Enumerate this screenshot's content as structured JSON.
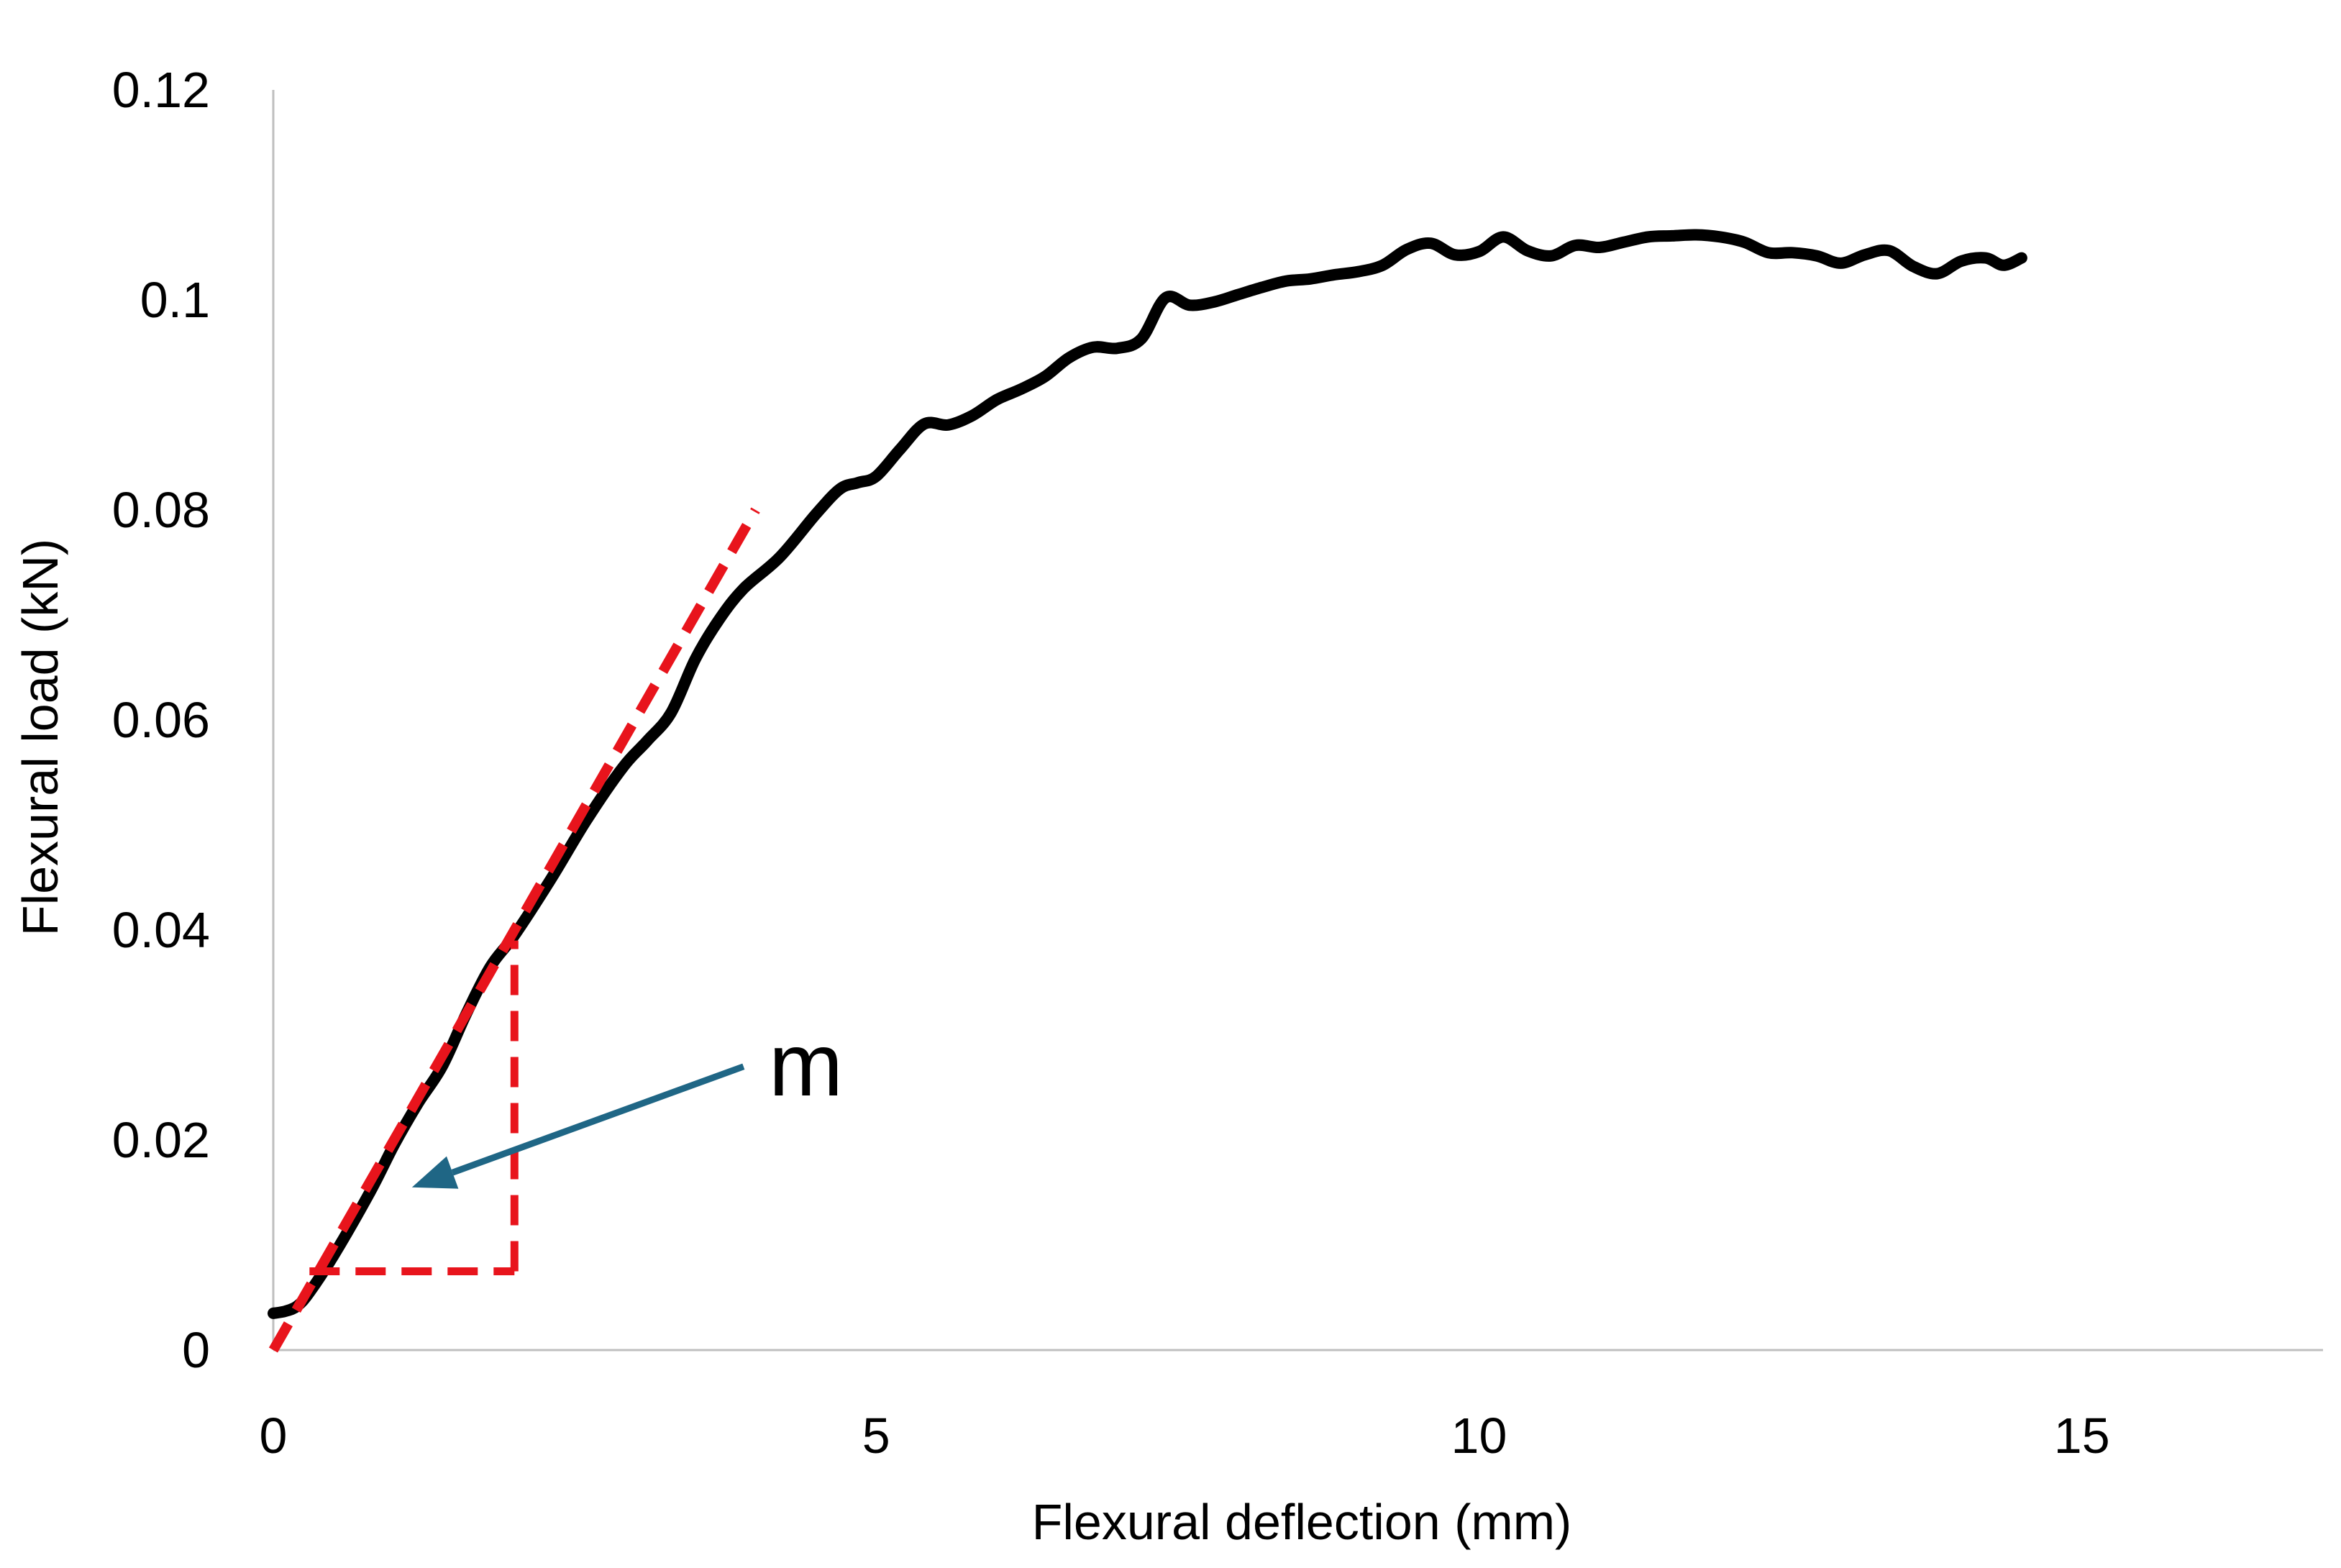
{
  "chart_data": {
    "type": "line",
    "title": "",
    "xlabel": "Flexural deflection (mm)",
    "ylabel": "Flexural load (kN)",
    "xlim": [
      0,
      17
    ],
    "ylim": [
      0,
      0.12
    ],
    "x_ticks": [
      0,
      5,
      10,
      15
    ],
    "y_ticks": [
      0,
      0.02,
      0.04,
      0.06,
      0.08,
      0.1,
      0.12
    ],
    "x_tick_labels": [
      "0",
      "5",
      "10",
      "15"
    ],
    "y_tick_labels": [
      "0",
      "0.02",
      "0.04",
      "0.06",
      "0.08",
      "0.1",
      "0.12"
    ],
    "grid": false,
    "legend": "none",
    "colors": {
      "curve": "#000000",
      "slope_line": "#e8141c",
      "arrow": "#1f6685",
      "axis": "#bfbfbf"
    },
    "series": [
      {
        "x": [
          0.0,
          0.1,
          0.2,
          0.3,
          0.5,
          0.8,
          1.0,
          1.2,
          1.4,
          1.6,
          1.8,
          2.0,
          2.3,
          2.6,
          2.9,
          3.1,
          3.3,
          3.5,
          3.7,
          3.9,
          4.2,
          4.5,
          4.7,
          4.85,
          5.0,
          5.2,
          5.4,
          5.6,
          5.8,
          6.0,
          6.2,
          6.4,
          6.6,
          6.8,
          7.0,
          7.2,
          7.4,
          7.6,
          7.8,
          8.0,
          8.2,
          8.4,
          8.6,
          8.8,
          9.0,
          9.2,
          9.4,
          9.6,
          9.8,
          10.0,
          10.2,
          10.4,
          10.6,
          10.8,
          11.0,
          11.2,
          11.4,
          11.6,
          11.8,
          12.0,
          12.2,
          12.4,
          12.6,
          12.8,
          13.0,
          13.2,
          13.4,
          13.6,
          13.8,
          14.0,
          14.2,
          14.35,
          14.5
        ],
        "y": [
          0.0035,
          0.0037,
          0.0042,
          0.0055,
          0.009,
          0.015,
          0.0195,
          0.0235,
          0.027,
          0.032,
          0.0365,
          0.0395,
          0.0448,
          0.0505,
          0.0555,
          0.058,
          0.0607,
          0.0658,
          0.0696,
          0.0725,
          0.0755,
          0.0796,
          0.082,
          0.0826,
          0.0832,
          0.0858,
          0.0882,
          0.0881,
          0.089,
          0.0905,
          0.0915,
          0.0927,
          0.0945,
          0.0955,
          0.0954,
          0.0963,
          0.1002,
          0.0995,
          0.0998,
          0.1005,
          0.1012,
          0.1018,
          0.102,
          0.1024,
          0.1027,
          0.1033,
          0.1048,
          0.1054,
          0.1043,
          0.1046,
          0.106,
          0.1047,
          0.1042,
          0.1052,
          0.105,
          0.1055,
          0.106,
          0.1061,
          0.1062,
          0.106,
          0.1055,
          0.1045,
          0.1045,
          0.1042,
          0.1035,
          0.1043,
          0.1047,
          0.1032,
          0.1025,
          0.1037,
          0.104,
          0.1033,
          0.104
        ]
      }
    ],
    "annotations": {
      "slope_line": {
        "x": [
          0.0,
          4.0
        ],
        "y": [
          0.0,
          0.08
        ]
      },
      "triangle_horizontal": {
        "x": [
          0.3,
          2.0
        ],
        "y": [
          0.0075,
          0.0075
        ]
      },
      "triangle_vertical": {
        "x": [
          2.0,
          2.0
        ],
        "y": [
          0.0075,
          0.039
        ]
      },
      "arrow_label": "m",
      "arrow": {
        "from": [
          3.9,
          0.027
        ],
        "to": [
          1.15,
          0.0155
        ]
      }
    }
  }
}
